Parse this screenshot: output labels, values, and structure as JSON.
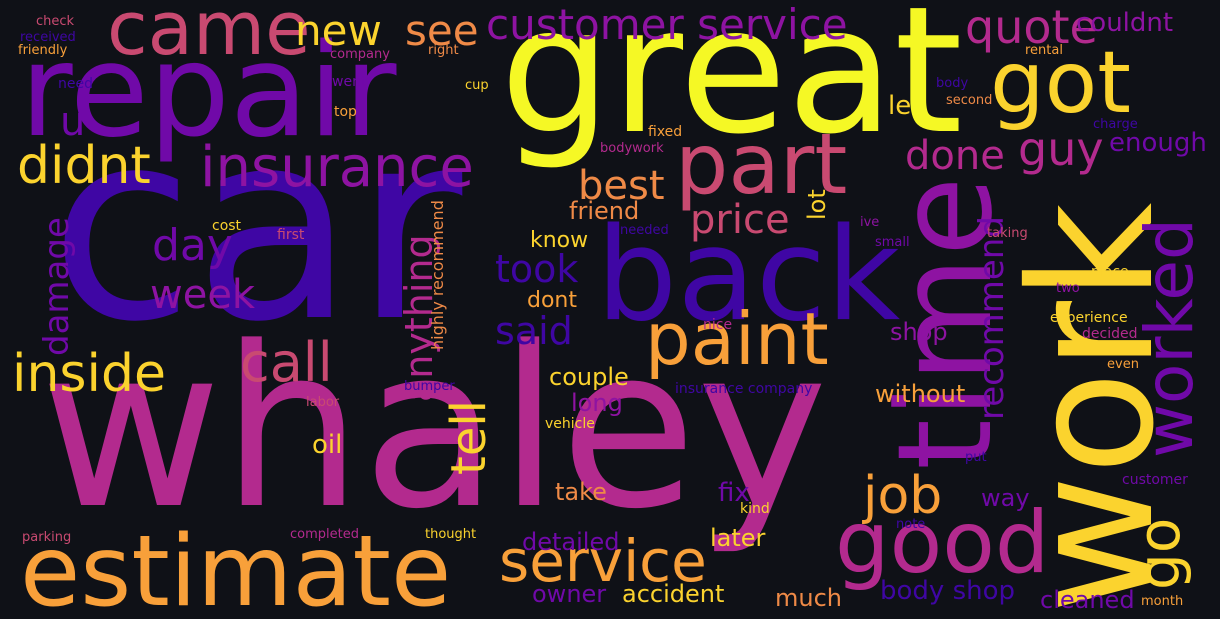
{
  "palette": {
    "background": "#0f1117",
    "deep_blue": "#3f06a4",
    "violet": "#7009a8",
    "purple": "#8e13a2",
    "magenta": "#b32a8e",
    "rose": "#c94a71",
    "orange": "#ef8a47",
    "light_orange": "#f8a03a",
    "gold": "#fbd32e",
    "yellow": "#f5f825"
  },
  "words": [
    {
      "text": "car",
      "color": "#3f06a4"
    },
    {
      "text": "whaley",
      "color": "#b32a8e"
    },
    {
      "text": "great",
      "color": "#f5f825"
    },
    {
      "text": "repair",
      "color": "#7009a8"
    },
    {
      "text": "work",
      "color": "#fbd32e"
    },
    {
      "text": "time",
      "color": "#8e13a2"
    },
    {
      "text": "back",
      "color": "#3f06a4"
    },
    {
      "text": "estimate",
      "color": "#f8a03a"
    },
    {
      "text": "part",
      "color": "#c94a71"
    },
    {
      "text": "got",
      "color": "#fbd32e"
    },
    {
      "text": "came",
      "color": "#c94a71"
    },
    {
      "text": "paint",
      "color": "#f8a03a"
    },
    {
      "text": "good",
      "color": "#b32a8e"
    },
    {
      "text": "customer service",
      "color": "#8e13a2"
    },
    {
      "text": "insurance",
      "color": "#8e13a2"
    },
    {
      "text": "worked",
      "color": "#7009a8"
    },
    {
      "text": "service",
      "color": "#f8a03a"
    },
    {
      "text": "inside",
      "color": "#fbd32e"
    },
    {
      "text": "didnt",
      "color": "#fbd32e"
    },
    {
      "text": "call",
      "color": "#c94a71"
    },
    {
      "text": "go",
      "color": "#fbd32e"
    },
    {
      "text": "job",
      "color": "#f8a03a"
    },
    {
      "text": "quote",
      "color": "#b32a8e"
    },
    {
      "text": "guy",
      "color": "#b32a8e"
    },
    {
      "text": "new",
      "color": "#fbd32e"
    },
    {
      "text": "see",
      "color": "#ef8a47"
    },
    {
      "text": "tell",
      "color": "#fbd32e"
    },
    {
      "text": "anything",
      "color": "#b32a8e"
    },
    {
      "text": "damage",
      "color": "#7009a8"
    },
    {
      "text": "done",
      "color": "#b32a8e"
    },
    {
      "text": "best",
      "color": "#ef8a47"
    },
    {
      "text": "price",
      "color": "#c94a71"
    },
    {
      "text": "day",
      "color": "#7009a8"
    },
    {
      "text": "week",
      "color": "#8e13a2"
    },
    {
      "text": "took",
      "color": "#3f06a4"
    },
    {
      "text": "said",
      "color": "#3f06a4"
    },
    {
      "text": "recommend",
      "color": "#7009a8"
    },
    {
      "text": "u",
      "color": "#7009a8"
    },
    {
      "text": "couldnt",
      "color": "#8e13a2"
    },
    {
      "text": "enough",
      "color": "#7009a8"
    },
    {
      "text": "le",
      "color": "#fbd32e"
    },
    {
      "text": "friend",
      "color": "#ef8a47"
    },
    {
      "text": "lot",
      "color": "#fbd32e"
    },
    {
      "text": "know",
      "color": "#fbd32e"
    },
    {
      "text": "dont",
      "color": "#f8a03a"
    },
    {
      "text": "couple",
      "color": "#fbd32e"
    },
    {
      "text": "long",
      "color": "#8e13a2"
    },
    {
      "text": "shop",
      "color": "#8e13a2"
    },
    {
      "text": "without",
      "color": "#f8a03a"
    },
    {
      "text": "oil",
      "color": "#fbd32e"
    },
    {
      "text": "take",
      "color": "#ef8a47"
    },
    {
      "text": "fix",
      "color": "#7009a8"
    },
    {
      "text": "way",
      "color": "#7009a8"
    },
    {
      "text": "detailed",
      "color": "#7009a8"
    },
    {
      "text": "later",
      "color": "#fbd32e"
    },
    {
      "text": "owner",
      "color": "#7009a8"
    },
    {
      "text": "accident",
      "color": "#fbd32e"
    },
    {
      "text": "much",
      "color": "#ef8a47"
    },
    {
      "text": "body shop",
      "color": "#3f06a4"
    },
    {
      "text": "cleaned",
      "color": "#7009a8"
    },
    {
      "text": "highly recommend",
      "color": "#ef8a47"
    },
    {
      "text": "check",
      "color": "#c94a71"
    },
    {
      "text": "received",
      "color": "#3f06a4"
    },
    {
      "text": "friendly",
      "color": "#f8a03a"
    },
    {
      "text": "company",
      "color": "#b32a8e"
    },
    {
      "text": "right",
      "color": "#ef8a47"
    },
    {
      "text": "rental",
      "color": "#f8a03a"
    },
    {
      "text": "need",
      "color": "#3f06a4"
    },
    {
      "text": "went",
      "color": "#7009a8"
    },
    {
      "text": "cup",
      "color": "#fbd32e"
    },
    {
      "text": "body",
      "color": "#3f06a4"
    },
    {
      "text": "top",
      "color": "#f8a03a"
    },
    {
      "text": "second",
      "color": "#ef8a47"
    },
    {
      "text": "charge",
      "color": "#3f06a4"
    },
    {
      "text": "fixed",
      "color": "#f8a03a"
    },
    {
      "text": "bodywork",
      "color": "#b32a8e"
    },
    {
      "text": "cost",
      "color": "#fbd32e"
    },
    {
      "text": "first",
      "color": "#c94a71"
    },
    {
      "text": "needed",
      "color": "#3f06a4"
    },
    {
      "text": "ive",
      "color": "#8e13a2"
    },
    {
      "text": "small",
      "color": "#7009a8"
    },
    {
      "text": "taking",
      "color": "#c94a71"
    },
    {
      "text": "place",
      "color": "#fbd32e"
    },
    {
      "text": "two",
      "color": "#8e13a2"
    },
    {
      "text": "experience",
      "color": "#fbd32e"
    },
    {
      "text": "decided",
      "color": "#b32a8e"
    },
    {
      "text": "nice",
      "color": "#b32a8e"
    },
    {
      "text": "insurance company",
      "color": "#3f06a4"
    },
    {
      "text": "bumper",
      "color": "#3f06a4"
    },
    {
      "text": "labor",
      "color": "#c94a71"
    },
    {
      "text": "vehicle",
      "color": "#fbd32e"
    },
    {
      "text": "even",
      "color": "#f8a03a"
    },
    {
      "text": "put",
      "color": "#3f06a4"
    },
    {
      "text": "customer",
      "color": "#7009a8"
    },
    {
      "text": "kind",
      "color": "#fbd32e"
    },
    {
      "text": "note",
      "color": "#3f06a4"
    },
    {
      "text": "parking",
      "color": "#c94a71"
    },
    {
      "text": "completed",
      "color": "#b32a8e"
    },
    {
      "text": "thought",
      "color": "#fbd32e"
    },
    {
      "text": "month",
      "color": "#f8a03a"
    }
  ]
}
